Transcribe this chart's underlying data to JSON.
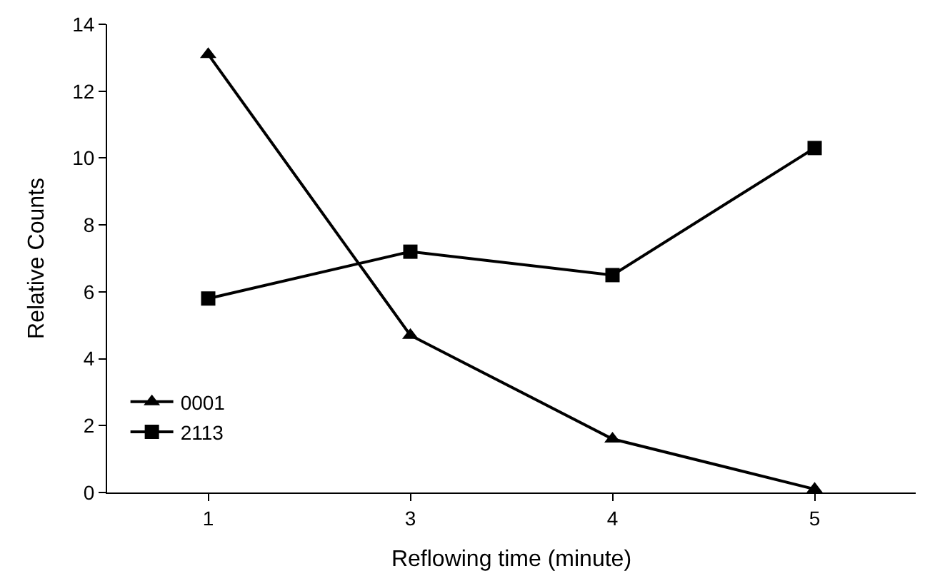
{
  "chart_data": {
    "type": "line",
    "xlabel": "Reflowing time (minute)",
    "ylabel": "Relative Counts",
    "categories": [
      "1",
      "3",
      "4",
      "5"
    ],
    "series": [
      {
        "name": "0001",
        "color": "#000000",
        "values": [
          13.1,
          4.7,
          1.6,
          0.1
        ],
        "marker": "triangle"
      },
      {
        "name": "2113",
        "color": "#000000",
        "values": [
          5.8,
          7.2,
          6.5,
          10.3
        ],
        "marker": "square"
      }
    ],
    "ylim": [
      0,
      14
    ],
    "yticks": [
      0,
      2,
      4,
      6,
      8,
      10,
      12,
      14
    ],
    "grid": false,
    "legend": "bottom left",
    "line_style": "solid"
  }
}
